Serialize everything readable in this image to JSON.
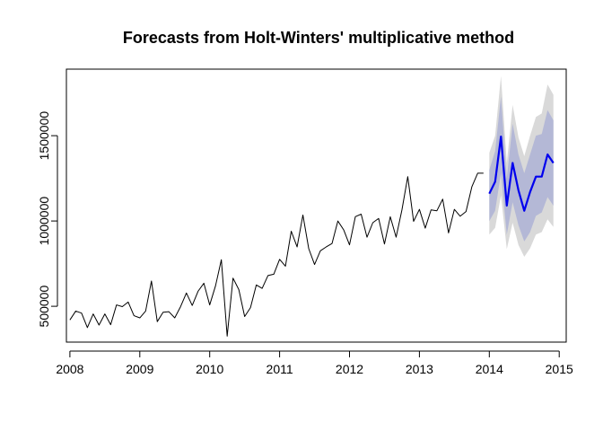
{
  "chart_data": {
    "type": "line",
    "title": "Forecasts from Holt-Winters' multiplicative method",
    "xlabel": "",
    "ylabel": "",
    "xlim": [
      2007.95,
      2015.1
    ],
    "ylim": [
      290000,
      1890000
    ],
    "x_ticks": [
      2008,
      2009,
      2010,
      2011,
      2012,
      2013,
      2014,
      2015
    ],
    "y_ticks": [
      500000,
      1000000,
      1500000
    ],
    "y_tick_labels": [
      "500000",
      "1000000",
      "1500000"
    ],
    "grid": false,
    "legend": "none",
    "series": [
      {
        "role": "observed",
        "color": "#000000",
        "start": 2008,
        "frequency": 12,
        "values": [
          420000,
          472000,
          460000,
          375000,
          455000,
          390000,
          455000,
          392000,
          508000,
          498000,
          525000,
          445000,
          432000,
          472000,
          648000,
          410000,
          465000,
          468000,
          432000,
          498000,
          578000,
          505000,
          588000,
          635000,
          508000,
          620000,
          773000,
          325000,
          665000,
          598000,
          440000,
          492000,
          625000,
          605000,
          680000,
          688000,
          775000,
          735000,
          940000,
          848000,
          1035000,
          838000,
          745000,
          825000,
          848000,
          868000,
          1000000,
          948000,
          860000,
          1025000,
          1040000,
          905000,
          990000,
          1015000,
          865000,
          1025000,
          905000,
          1065000,
          1260000,
          998000,
          1068000,
          958000,
          1065000,
          1060000,
          1128000,
          930000,
          1068000,
          1028000,
          1055000,
          1200000,
          1280000,
          1280000
        ]
      },
      {
        "role": "forecast",
        "color": "#0000ee",
        "start": 2014,
        "frequency": 12,
        "values": [
          1160000,
          1230000,
          1495000,
          1090000,
          1340000,
          1180000,
          1060000,
          1170000,
          1260000,
          1260000,
          1390000,
          1340000
        ],
        "lo80": [
          1000000,
          1060000,
          1280000,
          920000,
          1110000,
          975000,
          880000,
          935000,
          1030000,
          1050000,
          1140000,
          1090000
        ],
        "hi80": [
          1300000,
          1410000,
          1730000,
          1250000,
          1570000,
          1390000,
          1280000,
          1390000,
          1500000,
          1510000,
          1650000,
          1590000
        ],
        "lo95": [
          920000,
          960000,
          1150000,
          835000,
          990000,
          860000,
          790000,
          840000,
          920000,
          935000,
          1010000,
          965000
        ],
        "hi95": [
          1400000,
          1500000,
          1850000,
          1340000,
          1680000,
          1490000,
          1380000,
          1500000,
          1610000,
          1630000,
          1800000,
          1740000
        ]
      }
    ],
    "band_colors": {
      "pi95": "#d9d9d9",
      "pi80": "#b4b8d6"
    }
  }
}
